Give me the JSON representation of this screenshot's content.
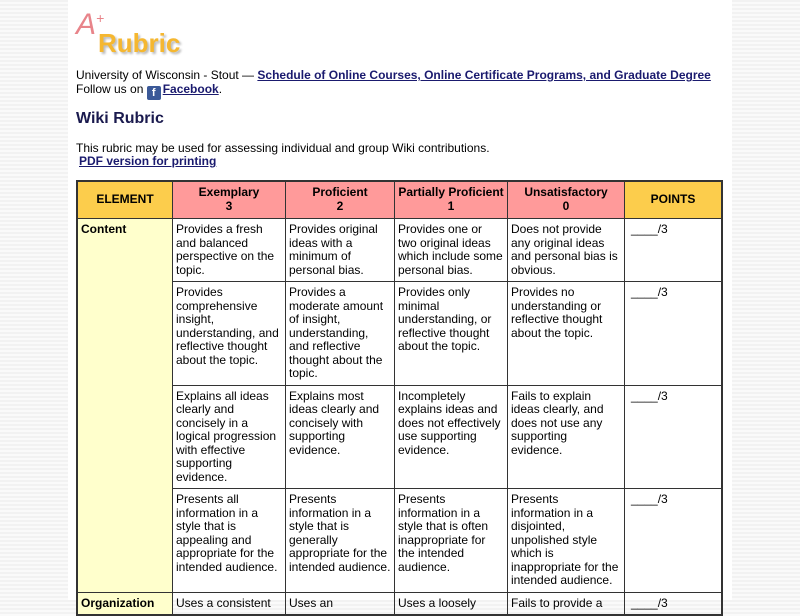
{
  "logo": {
    "text": "Rubric",
    "mark": "A+"
  },
  "header": {
    "org": "University of Wisconsin - Stout — ",
    "org_link": "Schedule of Online Courses, Online Certificate Programs, and Graduate Degree",
    "follow": "Follow us on ",
    "facebook": "Facebook",
    "period": "."
  },
  "title": "Wiki Rubric",
  "intro": "This rubric may be used for assessing individual and group Wiki contributions.",
  "pdf_link": "PDF version for printing",
  "colors": {
    "header_gold": "#fccd4c",
    "header_pink": "#ff9a9a",
    "element_bg": "#ffffcc"
  },
  "table": {
    "headers": [
      {
        "label": "ELEMENT"
      },
      {
        "label": "Exemplary",
        "score": "3"
      },
      {
        "label": "Proficient",
        "score": "2"
      },
      {
        "label": "Partially Proficient",
        "score": "1"
      },
      {
        "label": "Unsatisfactory",
        "score": "0"
      },
      {
        "label": "POINTS"
      }
    ],
    "rows": [
      {
        "element": "Content",
        "cells": [
          "Provides a fresh and balanced perspective on the topic.",
          "Provides original ideas with a minimum of personal bias.",
          "Provides one or two original ideas which include some personal bias.",
          "Does not provide any original ideas and personal bias is obvious."
        ],
        "points": "____/3"
      },
      {
        "element": "",
        "cells": [
          "Provides comprehensive insight, understanding, and reflective thought about the topic.",
          "Provides a moderate amount of insight, understanding, and reflective thought about the topic.",
          "Provides only minimal understanding, or reflective thought about the topic.",
          "Provides no understanding or reflective thought about the topic."
        ],
        "points": "____/3"
      },
      {
        "element": "",
        "cells": [
          "Explains all ideas clearly and concisely in a logical progression with effective supporting evidence.",
          "Explains most ideas clearly and concisely with supporting evidence.",
          "Incompletely explains ideas and does not effectively use supporting evidence.",
          "Fails to explain ideas clearly, and does not use any supporting evidence."
        ],
        "points": "____/3"
      },
      {
        "element": "",
        "cells": [
          "Presents all information in a style that is appealing and appropriate for the intended audience.",
          "Presents information in a style that is generally appropriate for the intended audience.",
          "Presents information in a style that is often inappropriate for the intended audience.",
          "Presents information in a disjointed, unpolished style which is inappropriate for the intended audience."
        ],
        "points": "____/3"
      },
      {
        "element": "Organization",
        "cells": [
          "Uses a consistent",
          "Uses an",
          "Uses a loosely",
          "Fails to provide a"
        ],
        "points": "____/3"
      }
    ]
  }
}
